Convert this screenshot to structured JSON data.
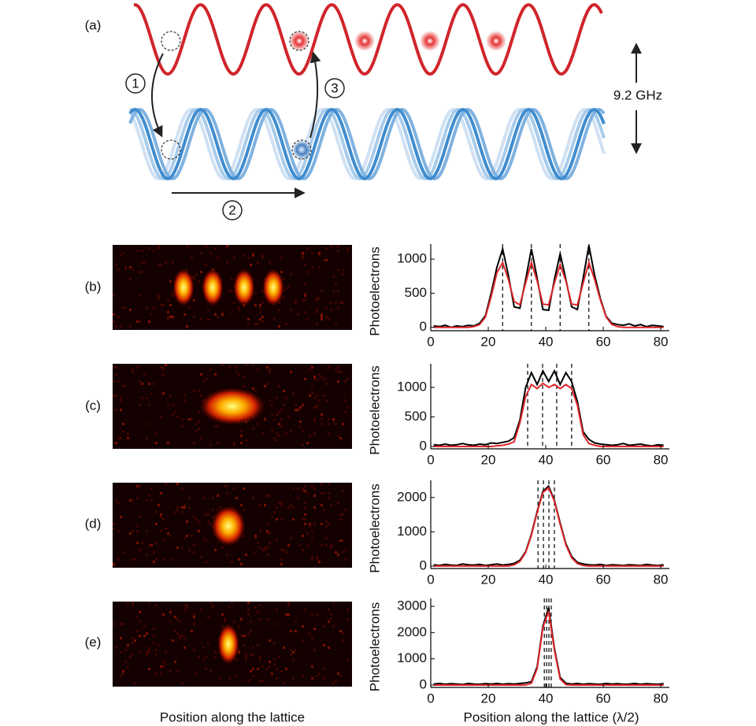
{
  "diagram": {
    "label": "(a)",
    "steps": [
      "1",
      "2",
      "3"
    ],
    "splitting": "9.2 GHz"
  },
  "image_caption": "Position along the lattice",
  "chart_data": [
    {
      "type": "line",
      "label": "(b)",
      "y_label": "Photoelectrons",
      "x": [
        1,
        3,
        5,
        7,
        9,
        11,
        13,
        15,
        17,
        19,
        21,
        23,
        25,
        27,
        29,
        31,
        33,
        35,
        37,
        39,
        41,
        43,
        45,
        47,
        49,
        51,
        53,
        55,
        57,
        59,
        61,
        63,
        65,
        67,
        69,
        71,
        73,
        75,
        77,
        79,
        81
      ],
      "series": [
        {
          "color": "#000000",
          "values": [
            20,
            10,
            30,
            0,
            20,
            10,
            30,
            20,
            60,
            170,
            500,
            880,
            1150,
            760,
            300,
            280,
            700,
            1150,
            720,
            260,
            250,
            700,
            1080,
            700,
            300,
            260,
            720,
            1200,
            760,
            420,
            160,
            60,
            40,
            30,
            50,
            20,
            40,
            10,
            30,
            20,
            10
          ]
        },
        {
          "color": "#e0262b",
          "values": [
            0,
            0,
            0,
            0,
            0,
            0,
            0,
            10,
            40,
            150,
            450,
            800,
            950,
            700,
            380,
            330,
            650,
            950,
            680,
            340,
            330,
            650,
            920,
            680,
            340,
            330,
            650,
            950,
            700,
            400,
            150,
            40,
            10,
            0,
            0,
            0,
            0,
            0,
            0,
            0,
            0
          ]
        }
      ],
      "markers": [
        25,
        35,
        45,
        55
      ],
      "xlim": [
        0,
        83
      ],
      "xticks": [
        0,
        20,
        40,
        60,
        80
      ],
      "ylim": [
        -50,
        1220
      ],
      "yticks": [
        0,
        500,
        1000
      ]
    },
    {
      "type": "line",
      "label": "(c)",
      "y_label": "Photoelectrons",
      "x": [
        1,
        3,
        5,
        7,
        9,
        11,
        13,
        15,
        17,
        19,
        21,
        23,
        25,
        27,
        29,
        31,
        33,
        35,
        37,
        39,
        41,
        43,
        45,
        47,
        49,
        51,
        53,
        55,
        57,
        59,
        61,
        63,
        65,
        67,
        69,
        71,
        73,
        75,
        77,
        79,
        81
      ],
      "series": [
        {
          "color": "#000000",
          "values": [
            30,
            20,
            40,
            20,
            30,
            50,
            30,
            20,
            40,
            30,
            60,
            50,
            70,
            90,
            150,
            450,
            1000,
            1250,
            1050,
            1280,
            1100,
            1280,
            1050,
            1250,
            1100,
            760,
            250,
            120,
            60,
            40,
            30,
            20,
            30,
            50,
            20,
            30,
            40,
            20,
            10,
            30,
            20
          ]
        },
        {
          "color": "#e0262b",
          "values": [
            0,
            0,
            0,
            0,
            0,
            0,
            0,
            0,
            0,
            0,
            0,
            10,
            20,
            40,
            80,
            400,
            850,
            1050,
            980,
            1070,
            1000,
            1050,
            980,
            1050,
            980,
            700,
            200,
            50,
            20,
            0,
            0,
            0,
            0,
            0,
            0,
            0,
            0,
            0,
            0,
            0,
            0
          ]
        }
      ],
      "markers": [
        33.7,
        38.9,
        43.8,
        49
      ],
      "xlim": [
        0,
        83
      ],
      "xticks": [
        0,
        20,
        40,
        60,
        80
      ],
      "ylim": [
        -40,
        1400
      ],
      "yticks": [
        0,
        500,
        1000
      ]
    },
    {
      "type": "line",
      "label": "(d)",
      "y_label": "Photoelectrons",
      "x": [
        1,
        3,
        5,
        7,
        9,
        11,
        13,
        15,
        17,
        19,
        21,
        23,
        25,
        27,
        29,
        31,
        33,
        35,
        37,
        39,
        41,
        43,
        45,
        47,
        49,
        51,
        53,
        55,
        57,
        59,
        61,
        63,
        65,
        67,
        69,
        71,
        73,
        75,
        77,
        79,
        81
      ],
      "series": [
        {
          "color": "#000000",
          "values": [
            40,
            20,
            50,
            30,
            20,
            60,
            40,
            30,
            50,
            20,
            40,
            60,
            30,
            50,
            80,
            170,
            420,
            930,
            1600,
            2180,
            2330,
            1920,
            1260,
            650,
            280,
            110,
            60,
            40,
            30,
            50,
            20,
            40,
            30,
            20,
            40,
            30,
            20,
            50,
            30,
            20,
            40
          ]
        },
        {
          "color": "#e0262b",
          "values": [
            0,
            0,
            0,
            0,
            0,
            0,
            0,
            0,
            0,
            0,
            0,
            0,
            0,
            0,
            37,
            137,
            396,
            894,
            1568,
            2144,
            2282,
            1892,
            1221,
            614,
            241,
            73,
            17,
            0,
            0,
            0,
            0,
            0,
            0,
            0,
            0,
            0,
            0,
            0,
            0,
            0,
            0
          ]
        }
      ],
      "markers": [
        37.3,
        39.2,
        41.1,
        43
      ],
      "xlim": [
        0,
        83
      ],
      "xticks": [
        0,
        20,
        40,
        60,
        80
      ],
      "ylim": [
        -70,
        2500
      ],
      "yticks": [
        0,
        1000,
        2000
      ]
    },
    {
      "type": "line",
      "label": "(e)",
      "y_label": "Photoelectrons",
      "x_label": "Position along the lattice (λ/2)",
      "x": [
        1,
        3,
        5,
        7,
        9,
        11,
        13,
        15,
        17,
        19,
        21,
        23,
        25,
        27,
        29,
        31,
        33,
        35,
        37,
        39,
        41,
        43,
        45,
        47,
        49,
        51,
        53,
        55,
        57,
        59,
        61,
        63,
        65,
        67,
        69,
        71,
        73,
        75,
        77,
        79,
        81
      ],
      "series": [
        {
          "color": "#000000",
          "values": [
            40,
            60,
            30,
            50,
            40,
            20,
            60,
            40,
            30,
            50,
            40,
            60,
            30,
            50,
            40,
            60,
            80,
            130,
            700,
            2250,
            2950,
            1400,
            290,
            70,
            40,
            60,
            30,
            50,
            40,
            30,
            60,
            40,
            50,
            30,
            40,
            60,
            30,
            50,
            40,
            30,
            50
          ]
        },
        {
          "color": "#e0262b",
          "values": [
            0,
            0,
            0,
            0,
            0,
            0,
            0,
            0,
            0,
            0,
            0,
            0,
            0,
            0,
            0,
            0,
            3,
            66,
            627,
            2189,
            2811,
            1328,
            231,
            15,
            0,
            0,
            0,
            0,
            0,
            0,
            0,
            0,
            0,
            0,
            0,
            0,
            0,
            0,
            0,
            0,
            0
          ]
        }
      ],
      "markers": [
        39.5,
        40.3,
        41.1,
        41.9
      ],
      "xlim": [
        0,
        83
      ],
      "xticks": [
        0,
        20,
        40,
        60,
        80
      ],
      "ylim": [
        -90,
        3300
      ],
      "yticks": [
        0,
        1000,
        2000,
        3000
      ]
    }
  ]
}
